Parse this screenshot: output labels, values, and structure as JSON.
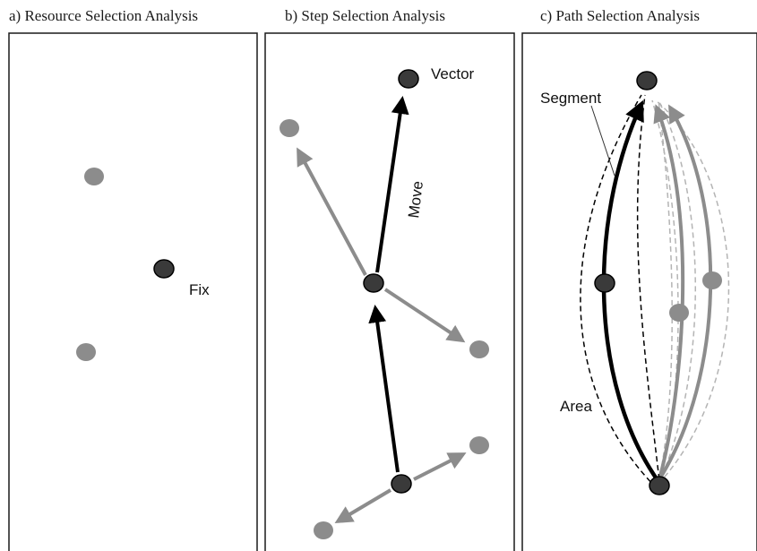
{
  "panels": [
    {
      "title": "a) Resource Selection Analysis",
      "labels": {
        "fix": "Fix"
      }
    },
    {
      "title": "b) Step Selection Analysis",
      "labels": {
        "vector": "Vector",
        "move": "Move"
      }
    },
    {
      "title": "c) Path Selection Analysis",
      "labels": {
        "segment": "Segment",
        "area": "Area"
      }
    }
  ],
  "colors": {
    "observed": "#3a3a3a",
    "available": "#8c8c8c",
    "available_light": "#b4b4b4",
    "frame": "#1a1a1a"
  }
}
